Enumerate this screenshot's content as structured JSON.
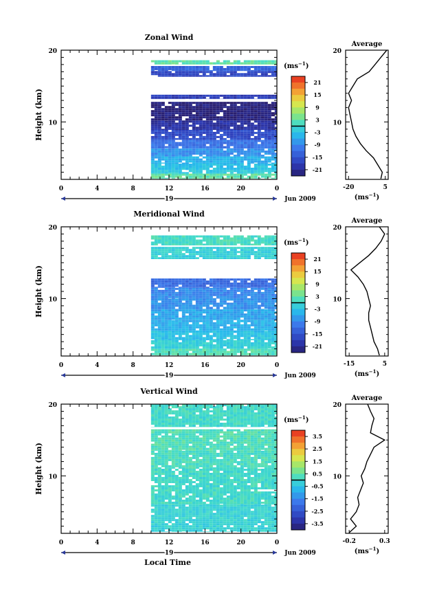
{
  "xlabel": "Local Time",
  "date_label": "Jun 2009",
  "day_label": "19",
  "unit_label": "(ms",
  "unit_exp": "−1",
  "chart_data": [
    {
      "type": "heatmap",
      "title": "Zonal Wind",
      "ylabel": "Height (km)",
      "xticks": [
        "0",
        "4",
        "8",
        "12",
        "16",
        "20",
        "0"
      ],
      "yticks": [
        "10",
        "20"
      ],
      "ylim": [
        2,
        20
      ],
      "xlim": [
        0,
        24
      ],
      "data_start_hour": 10,
      "colorbar": {
        "ticks": [
          "21",
          "15",
          "9",
          "3",
          "-3",
          "-9",
          "-15",
          "-21"
        ],
        "range": [
          -24,
          24
        ]
      },
      "bands": [
        {
          "from": 2.1,
          "to": 2.8,
          "value": 3
        },
        {
          "from": 2.8,
          "to": 3.3,
          "value": -2
        },
        {
          "from": 3.3,
          "to": 4.2,
          "value": -3
        },
        {
          "from": 4.2,
          "to": 5.2,
          "value": -5
        },
        {
          "from": 5.2,
          "to": 6.3,
          "value": -8
        },
        {
          "from": 6.3,
          "to": 7.5,
          "value": -11
        },
        {
          "from": 7.5,
          "to": 8.9,
          "value": -16
        },
        {
          "from": 8.9,
          "to": 10.2,
          "value": -20
        },
        {
          "from": 10.2,
          "to": 12.8,
          "value": -23
        },
        {
          "from": 13.2,
          "to": 13.8,
          "value": -18
        },
        {
          "from": 16.3,
          "to": 17.1,
          "value": -17
        },
        {
          "from": 17.1,
          "to": 17.8,
          "value": -13
        },
        {
          "from": 18.0,
          "to": 18.6,
          "value": 3
        }
      ],
      "avg": {
        "title": "Average",
        "xticks": [
          "-20",
          "5"
        ],
        "xlim": [
          -22,
          7
        ],
        "xlabel": "(ms",
        "heights": [
          2,
          3,
          4,
          5,
          6,
          7,
          8,
          9,
          10,
          11,
          12,
          13,
          14,
          15,
          16,
          17,
          18,
          19,
          20
        ],
        "values": [
          2,
          3,
          0,
          -3,
          -8,
          -12,
          -15,
          -17,
          -18,
          -19,
          -20,
          -18,
          -20,
          -17,
          -14,
          -6,
          -2,
          2,
          6
        ]
      }
    },
    {
      "type": "heatmap",
      "title": "Meridional Wind",
      "ylabel": "Height (km)",
      "xticks": [
        "0",
        "4",
        "8",
        "12",
        "16",
        "20",
        "0"
      ],
      "yticks": [
        "10",
        "20"
      ],
      "ylim": [
        2,
        20
      ],
      "xlim": [
        0,
        24
      ],
      "data_start_hour": 10,
      "colorbar": {
        "ticks": [
          "21",
          "15",
          "9",
          "3",
          "-3",
          "-9",
          "-15",
          "-21"
        ],
        "range": [
          -24,
          24
        ]
      },
      "bands": [
        {
          "from": 2.1,
          "to": 3.0,
          "value": 2
        },
        {
          "from": 3.0,
          "to": 4.2,
          "value": -1
        },
        {
          "from": 4.2,
          "to": 5.5,
          "value": -3
        },
        {
          "from": 5.5,
          "to": 7.0,
          "value": -5
        },
        {
          "from": 7.0,
          "to": 8.5,
          "value": -6
        },
        {
          "from": 8.5,
          "to": 10.0,
          "value": -8
        },
        {
          "from": 10.0,
          "to": 11.5,
          "value": -9
        },
        {
          "from": 11.5,
          "to": 12.8,
          "value": -12
        },
        {
          "from": 15.5,
          "to": 17.2,
          "value": -1
        },
        {
          "from": 17.4,
          "to": 18.8,
          "value": 1
        }
      ],
      "avg": {
        "title": "Average",
        "xticks": [
          "-15",
          "5"
        ],
        "xlim": [
          -17,
          7
        ],
        "xlabel": "(ms",
        "heights": [
          2,
          3,
          4,
          5,
          6,
          7,
          8,
          9,
          10,
          11,
          12,
          13,
          14,
          15,
          16,
          17,
          18,
          19,
          20
        ],
        "values": [
          2,
          1,
          -1,
          -2,
          -3,
          -4,
          -4,
          -3,
          -4,
          -5,
          -7,
          -10,
          -14,
          -9,
          -4,
          0,
          3,
          5,
          2
        ]
      }
    },
    {
      "type": "heatmap",
      "title": "Vertical Wind",
      "ylabel": "Height (km)",
      "xticks": [
        "0",
        "4",
        "8",
        "12",
        "16",
        "20",
        "0"
      ],
      "yticks": [
        "10",
        "20"
      ],
      "ylim": [
        2,
        20
      ],
      "xlim": [
        0,
        24
      ],
      "data_start_hour": 10,
      "colorbar": {
        "ticks": [
          "3.5",
          "2.5",
          "1.5",
          "0.5",
          "-0.5",
          "-1.5",
          "-2.5",
          "-3.5"
        ],
        "range": [
          -4,
          4
        ]
      },
      "bands": [
        {
          "from": 2.2,
          "to": 6.0,
          "value": -0.1
        },
        {
          "from": 6.0,
          "to": 11.0,
          "value": 0.1
        },
        {
          "from": 11.0,
          "to": 13.5,
          "value": 0.2
        },
        {
          "from": 13.5,
          "to": 16.5,
          "value": 0.3
        },
        {
          "from": 16.8,
          "to": 20,
          "value": 0.1
        }
      ],
      "avg": {
        "title": "Average",
        "xticks": [
          "-0.2",
          "0.3"
        ],
        "xlim": [
          -0.25,
          0.35
        ],
        "xlabel": "(ms",
        "heights": [
          2,
          3,
          4,
          5,
          6,
          7,
          8,
          9,
          10,
          11,
          12,
          13,
          14,
          15,
          16,
          17,
          18,
          19,
          20
        ],
        "values": [
          -0.2,
          -0.1,
          -0.18,
          -0.1,
          -0.06,
          -0.08,
          -0.04,
          0.0,
          -0.03,
          0.02,
          0.05,
          0.1,
          0.15,
          0.3,
          0.1,
          0.12,
          0.15,
          0.1,
          0.06
        ]
      }
    }
  ]
}
